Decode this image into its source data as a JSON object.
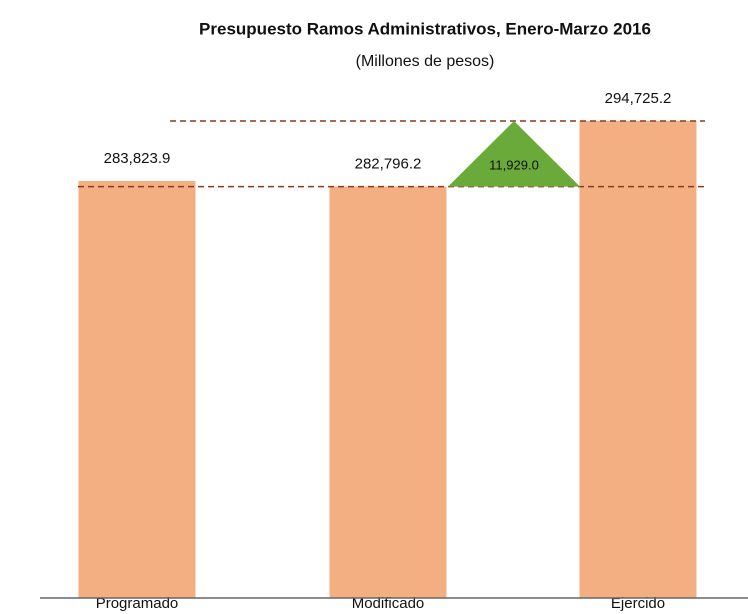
{
  "chart_data": {
    "type": "bar",
    "title": "Presupuesto Ramos Administrativos, Enero-Marzo 2016",
    "subtitle": "(Millones de pesos)",
    "categories": [
      "Programado",
      "Modificado",
      "Ejercido"
    ],
    "values": [
      283823.9,
      282796.2,
      294725.2
    ],
    "value_labels": [
      "283,823.9",
      "282,796.2",
      "294,725.2"
    ],
    "color": "#f3ae81",
    "annotation": {
      "value": 11929.0,
      "label": "11,929.0",
      "color": "#6aaa3a"
    },
    "ylim": [
      208000,
      300000
    ]
  }
}
